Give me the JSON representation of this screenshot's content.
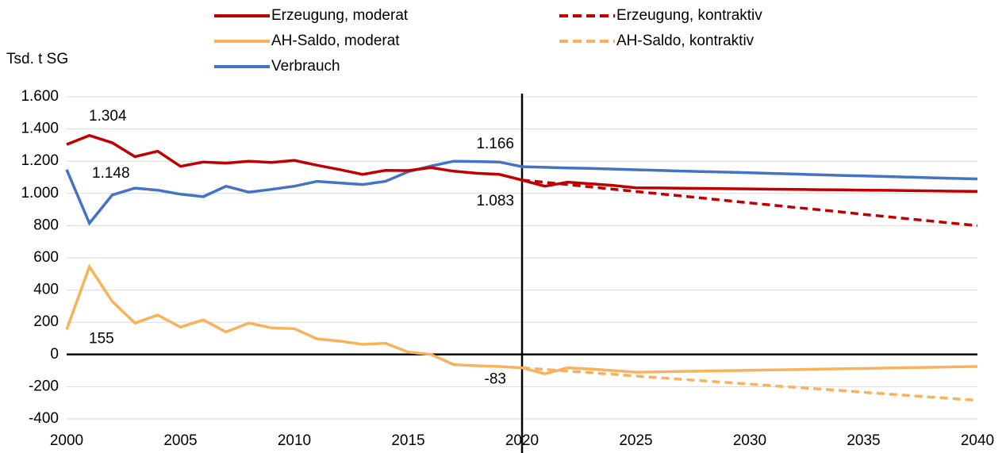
{
  "chart_data": {
    "type": "line",
    "y_axis_label": "Tsd. t SG",
    "x": [
      2000,
      2001,
      2002,
      2003,
      2004,
      2005,
      2006,
      2007,
      2008,
      2009,
      2010,
      2011,
      2012,
      2013,
      2014,
      2015,
      2016,
      2017,
      2018,
      2019,
      2020,
      2021,
      2022,
      2023,
      2024,
      2025,
      2026,
      2027,
      2028,
      2029,
      2030,
      2031,
      2032,
      2033,
      2034,
      2035,
      2036,
      2037,
      2038,
      2039,
      2040
    ],
    "series": [
      {
        "name": "Erzeugung, moderat",
        "color": "#c00000",
        "dashed": false,
        "values": [
          1304,
          1360,
          1315,
          1228,
          1262,
          1168,
          1195,
          1188,
          1200,
          1192,
          1205,
          1175,
          1148,
          1118,
          1143,
          1142,
          1160,
          1138,
          1125,
          1118,
          1083,
          1045,
          1070,
          1060,
          1050,
          1035,
          1034,
          1032,
          1031,
          1029,
          1028,
          1026,
          1025,
          1023,
          1022,
          1020,
          1019,
          1017,
          1016,
          1014,
          1013
        ],
        "value_labels": [
          "1.304",
          null,
          null,
          null,
          null,
          null,
          null,
          null,
          null,
          null,
          null,
          null,
          null,
          null,
          null,
          null,
          null,
          null,
          null,
          null,
          "1.083",
          null,
          null,
          null,
          null,
          null,
          null,
          null,
          null,
          null,
          null,
          null,
          null,
          null,
          null,
          null,
          null,
          null,
          null,
          null,
          null
        ]
      },
      {
        "name": "Erzeugung, kontraktiv",
        "color": "#c00000",
        "dashed": true,
        "values": [
          null,
          null,
          null,
          null,
          null,
          null,
          null,
          null,
          null,
          null,
          null,
          null,
          null,
          null,
          null,
          null,
          null,
          null,
          null,
          null,
          1083,
          1069,
          1055,
          1041,
          1026,
          1012,
          998,
          984,
          970,
          955,
          941,
          927,
          913,
          899,
          885,
          870,
          856,
          842,
          828,
          814,
          800
        ]
      },
      {
        "name": "AH-Saldo, moderat",
        "color": "#f8b25c",
        "dashed": false,
        "values": [
          155,
          545,
          330,
          195,
          245,
          170,
          215,
          140,
          195,
          165,
          160,
          97,
          83,
          63,
          70,
          15,
          0,
          -63,
          -70,
          -75,
          -83,
          -120,
          -83,
          -90,
          -100,
          -110,
          -108,
          -105,
          -103,
          -101,
          -98,
          -96,
          -94,
          -91,
          -89,
          -87,
          -84,
          -82,
          -80,
          -77,
          -75
        ],
        "value_labels": [
          "155",
          null,
          null,
          null,
          null,
          null,
          null,
          null,
          null,
          null,
          null,
          null,
          null,
          null,
          null,
          null,
          null,
          null,
          null,
          null,
          "-83",
          null,
          null,
          null,
          null,
          null,
          null,
          null,
          null,
          null,
          null,
          null,
          null,
          null,
          null,
          null,
          null,
          null,
          null,
          null,
          null
        ]
      },
      {
        "name": "AH-Saldo, kontraktiv",
        "color": "#f8b25c",
        "dashed": true,
        "values": [
          null,
          null,
          null,
          null,
          null,
          null,
          null,
          null,
          null,
          null,
          null,
          null,
          null,
          null,
          null,
          null,
          null,
          null,
          null,
          null,
          -83,
          -93,
          -103,
          -113,
          -123,
          -134,
          -144,
          -154,
          -164,
          -174,
          -184,
          -194,
          -204,
          -214,
          -224,
          -235,
          -245,
          -255,
          -265,
          -275,
          -285
        ]
      },
      {
        "name": "Verbrauch",
        "color": "#4472c4",
        "dashed": false,
        "values": [
          1148,
          815,
          990,
          1033,
          1020,
          995,
          980,
          1045,
          1008,
          1025,
          1045,
          1075,
          1065,
          1055,
          1075,
          1135,
          1170,
          1200,
          1198,
          1195,
          1166,
          1162,
          1158,
          1155,
          1151,
          1147,
          1143,
          1139,
          1135,
          1132,
          1128,
          1124,
          1120,
          1116,
          1112,
          1109,
          1105,
          1101,
          1097,
          1093,
          1090
        ],
        "value_labels": [
          "1.148",
          null,
          null,
          null,
          null,
          null,
          null,
          null,
          null,
          null,
          null,
          null,
          null,
          null,
          null,
          null,
          null,
          null,
          null,
          null,
          "1.166",
          null,
          null,
          null,
          null,
          null,
          null,
          null,
          null,
          null,
          null,
          null,
          null,
          null,
          null,
          null,
          null,
          null,
          null,
          null,
          null
        ]
      }
    ],
    "xlim": [
      2000,
      2040
    ],
    "xticks": [
      2000,
      2005,
      2010,
      2015,
      2020,
      2025,
      2030,
      2035,
      2040
    ],
    "ylim": [
      -400,
      1600
    ],
    "yticks": [
      -400,
      -200,
      0,
      200,
      400,
      600,
      800,
      {
        "value": 1000,
        "label": "1.000"
      },
      {
        "value": 1200,
        "label": "1.200"
      },
      {
        "value": 1400,
        "label": "1.400"
      },
      {
        "value": 1600,
        "label": "1.600"
      }
    ],
    "vertical_line": 2020,
    "grid": true,
    "legend": "top"
  }
}
